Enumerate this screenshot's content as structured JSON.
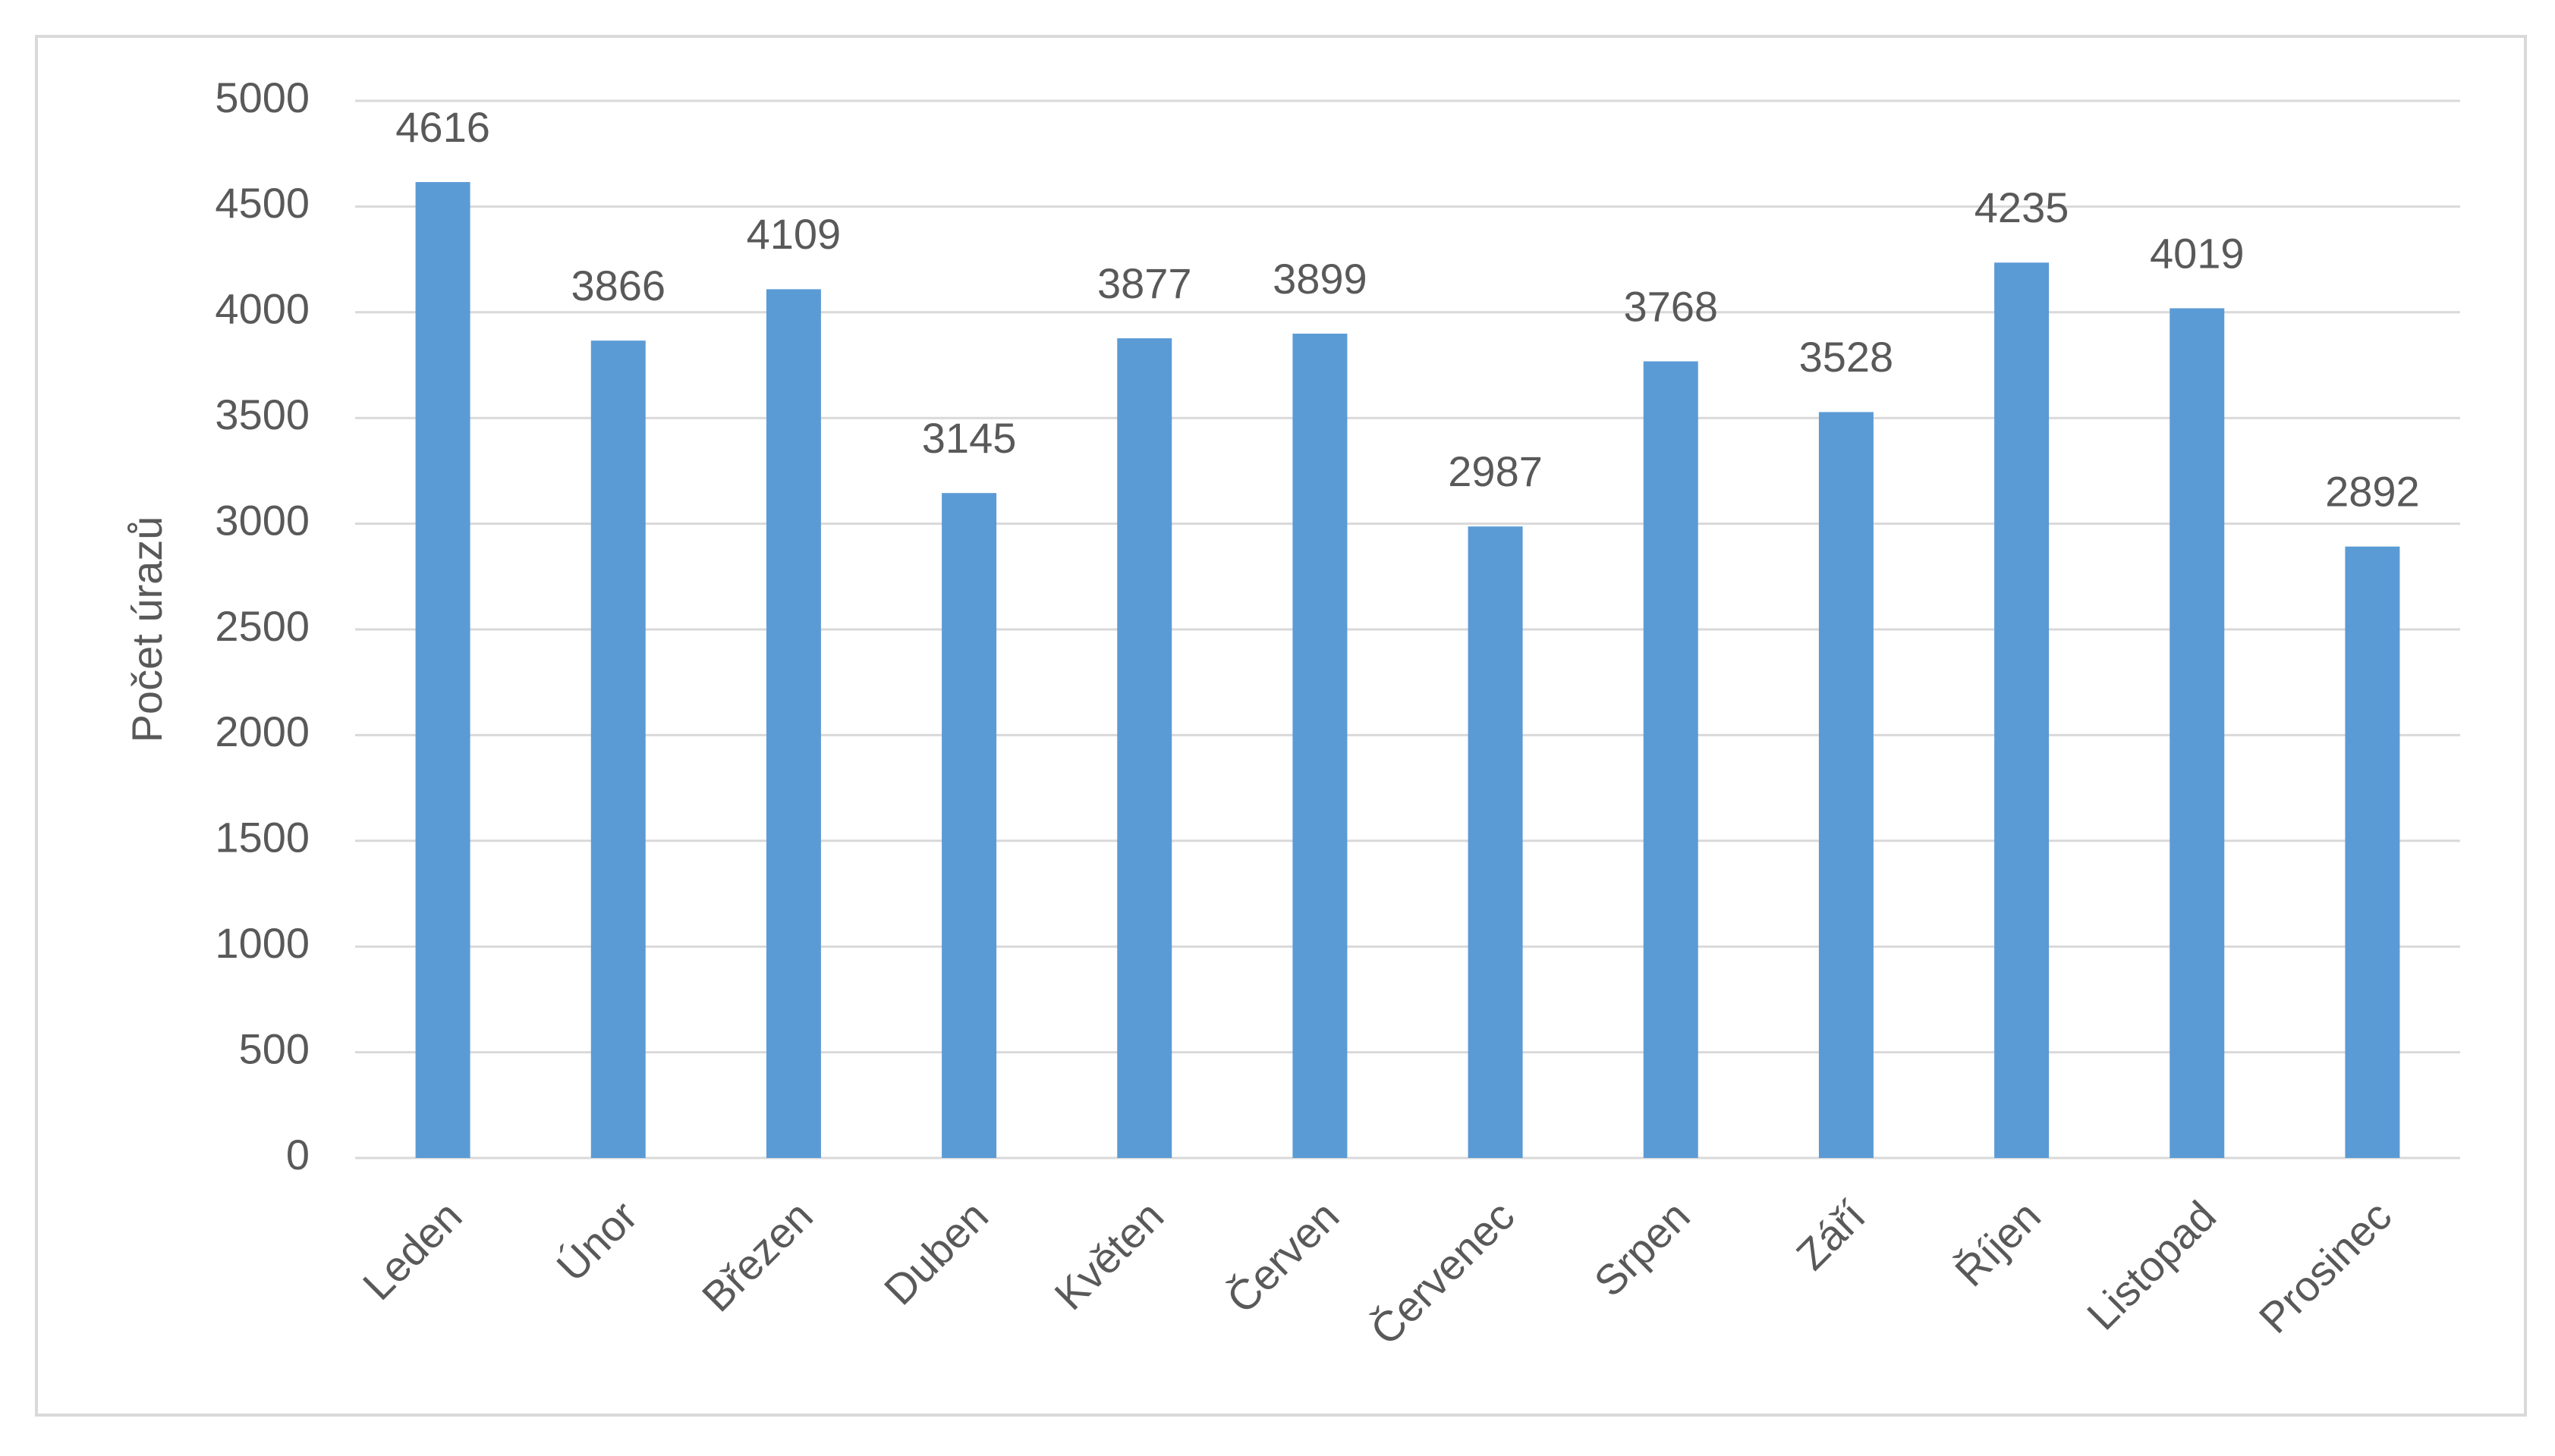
{
  "chart_data": {
    "type": "bar",
    "y_label": "Počet úrazů",
    "categories": [
      "Leden",
      "Únor",
      "Březen",
      "Duben",
      "Květen",
      "Červen",
      "Červenec",
      "Srpen",
      "Září",
      "Říjen",
      "Listopad",
      "Prosinec"
    ],
    "values": [
      4616,
      3866,
      4109,
      3145,
      3877,
      3899,
      2987,
      3768,
      3528,
      4235,
      4019,
      2892
    ],
    "color": "#5b9bd5",
    "ylim": [
      0,
      5000
    ],
    "yticks": [
      0,
      500,
      1000,
      1500,
      2000,
      2500,
      3000,
      3500,
      4000,
      4500,
      5000
    ],
    "grid": true
  }
}
